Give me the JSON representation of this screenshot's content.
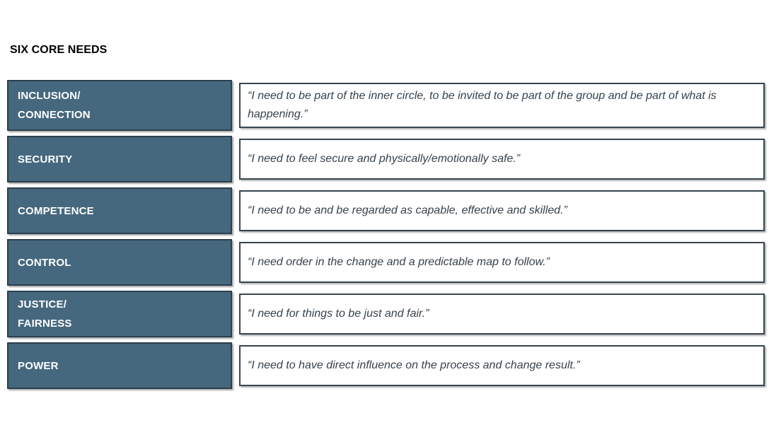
{
  "title": "SIX CORE NEEDS",
  "colors": {
    "need_box_fill": "#46687E",
    "need_box_border": "#2B3F4E",
    "need_text": "#FFFFFF",
    "quote_box_border": "#37464F",
    "quote_text": "#36424B",
    "title_text": "#000000",
    "background": "#FFFFFF"
  },
  "rows": [
    {
      "need": "INCLUSION/\nCONNECTION",
      "quote": "“I need to be part of the inner circle, to be invited to be part of the group and be part of what is happening.”"
    },
    {
      "need": "SECURITY",
      "quote": "“I need to feel secure and physically/emotionally safe.”"
    },
    {
      "need": "COMPETENCE",
      "quote": "“I need to be and be regarded as capable, effective and skilled.”"
    },
    {
      "need": "CONTROL",
      "quote": "“I need order in the change and a predictable map to follow.”"
    },
    {
      "need": "JUSTICE/\nFAIRNESS",
      "quote": "“I need for things to be just and fair.”"
    },
    {
      "need": "POWER",
      "quote": "“I need to have direct influence on the process and change result.”"
    }
  ]
}
